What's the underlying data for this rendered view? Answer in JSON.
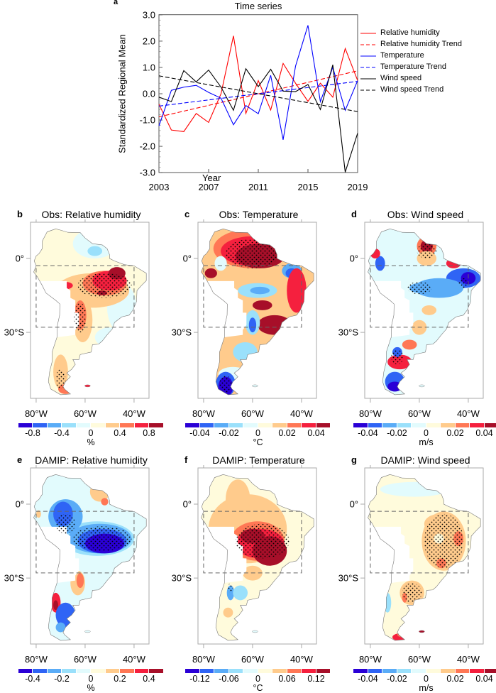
{
  "panel_a": {
    "letter": "a",
    "title": "Time series",
    "ylabel": "Standardized Regional Mean",
    "xlabel": "Year",
    "yticks": [
      "3.0",
      "2.0",
      "1.0",
      "0.0",
      "-1.0",
      "-2.0",
      "-3.0"
    ],
    "xticks": [
      "2003",
      "2007",
      "2011",
      "2015",
      "2019"
    ],
    "legend": [
      "Relative humidity",
      "Relative humidity Trend",
      "Temperature",
      "Temperature Trend",
      "Wind speed",
      "Wind speed Trend"
    ]
  },
  "chart_data": {
    "type": "line",
    "title": "Time series",
    "xlabel": "Year",
    "ylabel": "Standardized Regional Mean",
    "xlim": [
      2003,
      2019
    ],
    "ylim": [
      -3.0,
      3.0
    ],
    "legend_position": "right",
    "x": [
      2003,
      2004,
      2005,
      2006,
      2007,
      2008,
      2009,
      2010,
      2011,
      2012,
      2013,
      2014,
      2015,
      2016,
      2017,
      2018,
      2019
    ],
    "series": [
      {
        "name": "Relative humidity",
        "color": "#ff0000",
        "dash": false,
        "values": [
          -0.4,
          -1.38,
          -1.44,
          -0.75,
          -1.09,
          0.0,
          2.2,
          -0.75,
          0.5,
          -0.62,
          1.15,
          0.4,
          -0.29,
          0.4,
          -0.13,
          1.72,
          0.5
        ]
      },
      {
        "name": "Relative humidity Trend",
        "color": "#ff0000",
        "dash": true,
        "x": [
          2003,
          2019
        ],
        "values": [
          -0.88,
          0.87
        ]
      },
      {
        "name": "Temperature",
        "color": "#0000ff",
        "dash": false,
        "values": [
          -1.22,
          0.13,
          0.25,
          0.32,
          0.05,
          -0.17,
          -1.18,
          -0.45,
          -0.76,
          0.7,
          -1.75,
          1.05,
          2.6,
          -0.3,
          1.0,
          -0.63,
          0.5
        ]
      },
      {
        "name": "Temperature Trend",
        "color": "#0000ff",
        "dash": true,
        "x": [
          2003,
          2019
        ],
        "values": [
          -0.47,
          0.47
        ]
      },
      {
        "name": "Wind speed",
        "color": "#000000",
        "dash": false,
        "values": [
          -0.13,
          -0.3,
          0.88,
          0.45,
          0.9,
          0.25,
          -0.63,
          0.95,
          0.27,
          0.93,
          0.1,
          0.08,
          0.35,
          -0.6,
          1.1,
          -2.98,
          -1.5
        ]
      },
      {
        "name": "Wind speed Trend",
        "color": "#000000",
        "dash": true,
        "x": [
          2003,
          2019
        ],
        "values": [
          0.68,
          -0.68
        ]
      }
    ]
  },
  "palette": [
    "#2a00d6",
    "#2f64f5",
    "#5aacf7",
    "#9ae0fb",
    "#e2fbfd",
    "#fffbdc",
    "#ffcb8c",
    "#ff7755",
    "#f5203e",
    "#a70f29"
  ],
  "map_axes": {
    "lat_labels": [
      "0°",
      "30°S"
    ],
    "lon_labels": [
      "80°W",
      "60°W",
      "40°W"
    ]
  },
  "maps": [
    {
      "letter": "b",
      "title": "Obs: Relative humidity",
      "cbar_labels": [
        "-0.8",
        "-0.4",
        "0",
        "0.4",
        "0.8"
      ],
      "unit": "%"
    },
    {
      "letter": "c",
      "title": "Obs: Temperature",
      "cbar_labels": [
        "-0.04",
        "-0.02",
        "0",
        "0.02",
        "0.04"
      ],
      "unit": "°C"
    },
    {
      "letter": "d",
      "title": "Obs: Wind speed",
      "cbar_labels": [
        "-0.04",
        "-0.02",
        "0",
        "0.02",
        "0.04"
      ],
      "unit": "m/s"
    },
    {
      "letter": "e",
      "title": "DAMIP: Relative humidity",
      "cbar_labels": [
        "-0.4",
        "-0.2",
        "0",
        "0.2",
        "0.4"
      ],
      "unit": "%"
    },
    {
      "letter": "f",
      "title": "DAMIP: Temperature",
      "cbar_labels": [
        "-0.12",
        "-0.06",
        "0",
        "0.06",
        "0.12"
      ],
      "unit": "°C"
    },
    {
      "letter": "g",
      "title": "DAMIP: Wind speed",
      "cbar_labels": [
        "-0.04",
        "-0.02",
        "0",
        "0.02",
        "0.04"
      ],
      "unit": "m/s"
    }
  ]
}
